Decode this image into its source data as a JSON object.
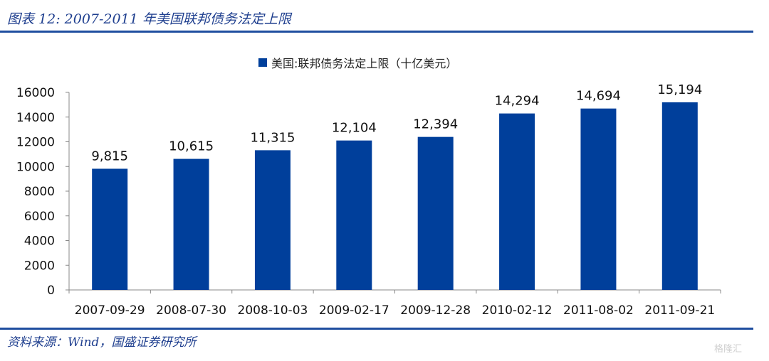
{
  "figure_title": "图表 12: 2007-2011 年美国联邦债务法定上限",
  "source": "资料来源：Wind，国盛证券研究所",
  "watermark": "格隆汇",
  "colors": {
    "bar": "#003f9b",
    "rule": "#1f4e9f",
    "title": "#1f3f8f"
  },
  "chart_data": {
    "type": "bar",
    "title": "",
    "xlabel": "",
    "ylabel": "",
    "ylim": [
      0,
      16000
    ],
    "yticks": [
      0,
      2000,
      4000,
      6000,
      8000,
      10000,
      12000,
      14000,
      16000
    ],
    "grid": false,
    "legend_position": "top",
    "categories": [
      "2007-09-29",
      "2008-07-30",
      "2008-10-03",
      "2009-02-17",
      "2009-12-28",
      "2010-02-12",
      "2011-08-02",
      "2011-09-21"
    ],
    "series": [
      {
        "name": "美国:联邦债务法定上限（十亿美元）",
        "values": [
          9815,
          10615,
          11315,
          12104,
          12394,
          14294,
          14694,
          15194
        ],
        "labels": [
          "9,815",
          "10,615",
          "11,315",
          "12,104",
          "12,394",
          "14,294",
          "14,694",
          "15,194"
        ]
      }
    ]
  }
}
